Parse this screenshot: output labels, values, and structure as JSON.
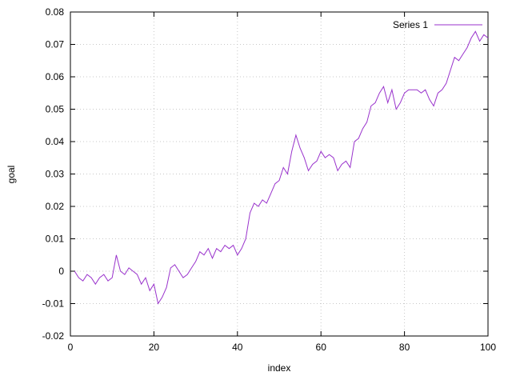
{
  "chart_data": {
    "type": "line",
    "title": "",
    "xlabel": "index",
    "ylabel": "goal",
    "xlim": [
      0,
      100
    ],
    "ylim": [
      -0.02,
      0.08
    ],
    "grid": true,
    "legend_position": "top-right",
    "colors": {
      "line": "#9932cc",
      "grid": "#c8c8c8",
      "border": "#000000"
    },
    "x_ticks": {
      "values": [
        0,
        20,
        40,
        60,
        80,
        100
      ],
      "labels": [
        "0",
        "20",
        "40",
        "60",
        "80",
        "100"
      ]
    },
    "y_ticks": {
      "values": [
        -0.02,
        -0.01,
        0,
        0.01,
        0.02,
        0.03,
        0.04,
        0.05,
        0.06,
        0.07,
        0.08
      ],
      "labels": [
        "-0.02",
        "-0.01",
        "0",
        "0.01",
        "0.02",
        "0.03",
        "0.04",
        "0.05",
        "0.06",
        "0.07",
        "0.08"
      ]
    },
    "series": [
      {
        "name": "Series 1",
        "color": "#9932cc",
        "x": [
          1,
          2,
          3,
          4,
          5,
          6,
          7,
          8,
          9,
          10,
          11,
          12,
          13,
          14,
          15,
          16,
          17,
          18,
          19,
          20,
          21,
          22,
          23,
          24,
          25,
          26,
          27,
          28,
          29,
          30,
          31,
          32,
          33,
          34,
          35,
          36,
          37,
          38,
          39,
          40,
          41,
          42,
          43,
          44,
          45,
          46,
          47,
          48,
          49,
          50,
          51,
          52,
          53,
          54,
          55,
          56,
          57,
          58,
          59,
          60,
          61,
          62,
          63,
          64,
          65,
          66,
          67,
          68,
          69,
          70,
          71,
          72,
          73,
          74,
          75,
          76,
          77,
          78,
          79,
          80,
          81,
          82,
          83,
          84,
          85,
          86,
          87,
          88,
          89,
          90,
          91,
          92,
          93,
          94,
          95,
          96,
          97,
          98,
          99,
          100
        ],
        "values": [
          0.0,
          -0.002,
          -0.003,
          -0.001,
          -0.002,
          -0.004,
          -0.002,
          -0.001,
          -0.003,
          -0.002,
          0.005,
          0.0,
          -0.001,
          0.001,
          0.0,
          -0.001,
          -0.004,
          -0.002,
          -0.006,
          -0.004,
          -0.01,
          -0.008,
          -0.005,
          0.001,
          0.002,
          0.0,
          -0.002,
          -0.001,
          0.001,
          0.003,
          0.006,
          0.005,
          0.007,
          0.004,
          0.007,
          0.006,
          0.008,
          0.007,
          0.008,
          0.005,
          0.007,
          0.01,
          0.018,
          0.021,
          0.02,
          0.022,
          0.021,
          0.024,
          0.027,
          0.028,
          0.032,
          0.03,
          0.037,
          0.042,
          0.038,
          0.035,
          0.031,
          0.033,
          0.034,
          0.037,
          0.035,
          0.036,
          0.035,
          0.031,
          0.033,
          0.034,
          0.032,
          0.04,
          0.041,
          0.044,
          0.046,
          0.051,
          0.052,
          0.055,
          0.057,
          0.052,
          0.056,
          0.05,
          0.052,
          0.055,
          0.056,
          0.056,
          0.056,
          0.055,
          0.056,
          0.053,
          0.051,
          0.055,
          0.056,
          0.058,
          0.062,
          0.066,
          0.065,
          0.067,
          0.069,
          0.072,
          0.074,
          0.071,
          0.073,
          0.072
        ]
      }
    ]
  }
}
